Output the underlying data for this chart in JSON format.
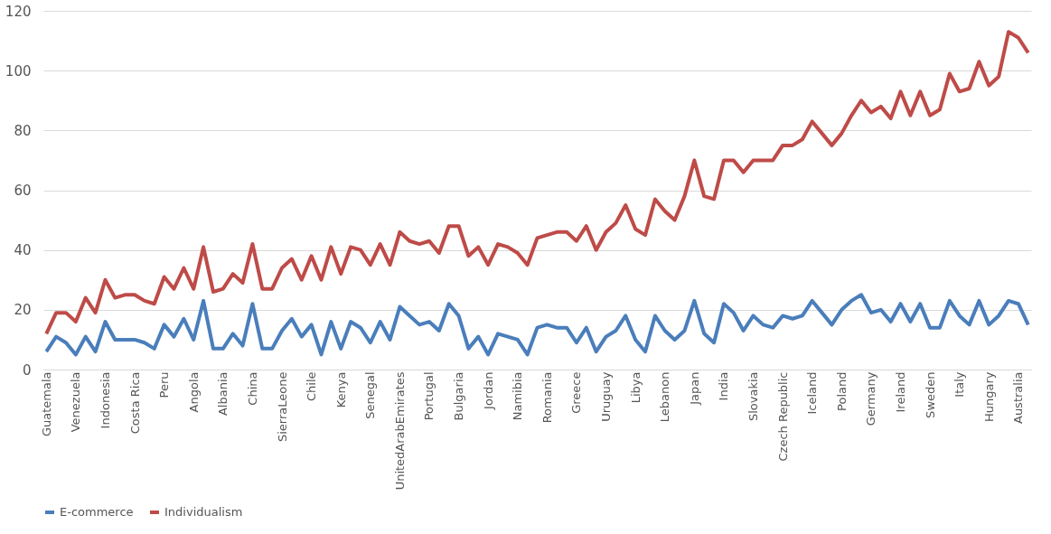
{
  "chart_data": {
    "type": "line",
    "categories": [
      "Guatemala",
      null,
      null,
      "Venezuela",
      null,
      null,
      "Indonesia",
      null,
      null,
      "Costa Rica",
      null,
      null,
      "Peru",
      null,
      null,
      "Angola",
      null,
      null,
      "Albania",
      null,
      null,
      "China",
      null,
      null,
      "SierraLeone",
      null,
      null,
      "Chile",
      null,
      null,
      "Kenya",
      null,
      null,
      "Senegal",
      null,
      null,
      "UnitedArabEmirates",
      null,
      null,
      "Portugal",
      null,
      null,
      "Bulgaria",
      null,
      null,
      "Jordan",
      null,
      null,
      "Namibia",
      null,
      null,
      "Romania",
      null,
      null,
      "Greece",
      null,
      null,
      "Uruguay",
      null,
      null,
      "Libya",
      null,
      null,
      "Lebanon",
      null,
      null,
      "Japan",
      null,
      null,
      "India",
      null,
      null,
      "Slovakia",
      null,
      null,
      "Czech Republic",
      null,
      null,
      "Iceland",
      null,
      null,
      "Poland",
      null,
      null,
      "Germany",
      null,
      null,
      "Ireland",
      null,
      null,
      "Sweden",
      null,
      null,
      "Italy",
      null,
      null,
      "Hungary",
      null,
      null,
      "Australia",
      null
    ],
    "series": [
      {
        "name": "E-commerce",
        "color": "#4a7ebb",
        "values": [
          6,
          11,
          9,
          5,
          11,
          6,
          16,
          10,
          10,
          10,
          9,
          7,
          15,
          11,
          17,
          10,
          23,
          7,
          7,
          12,
          8,
          22,
          7,
          7,
          13,
          17,
          11,
          15,
          5,
          16,
          7,
          16,
          14,
          9,
          16,
          10,
          21,
          18,
          15,
          16,
          13,
          22,
          18,
          7,
          11,
          5,
          12,
          11,
          10,
          5,
          14,
          15,
          14,
          14,
          9,
          14,
          6,
          11,
          13,
          18,
          10,
          6,
          18,
          13,
          10,
          13,
          23,
          12,
          9,
          22,
          19,
          13,
          18,
          15,
          14,
          18,
          17,
          18,
          23,
          19,
          15,
          20,
          23,
          25,
          19,
          20,
          16,
          22,
          16,
          22,
          14,
          14,
          23,
          18,
          15,
          23,
          15,
          18,
          23,
          22,
          15
        ]
      },
      {
        "name": "Individualism",
        "color": "#be4b48",
        "values": [
          12,
          19,
          19,
          16,
          24,
          19,
          30,
          24,
          25,
          25,
          23,
          22,
          31,
          27,
          34,
          27,
          41,
          26,
          27,
          32,
          29,
          42,
          27,
          27,
          34,
          37,
          30,
          38,
          30,
          41,
          32,
          41,
          40,
          35,
          42,
          35,
          46,
          43,
          42,
          43,
          39,
          48,
          48,
          38,
          41,
          35,
          42,
          41,
          39,
          35,
          44,
          45,
          46,
          46,
          43,
          48,
          40,
          46,
          49,
          55,
          47,
          45,
          57,
          53,
          50,
          58,
          70,
          58,
          57,
          70,
          70,
          66,
          70,
          70,
          70,
          75,
          75,
          77,
          83,
          79,
          75,
          79,
          85,
          90,
          86,
          88,
          84,
          93,
          85,
          93,
          85,
          87,
          99,
          93,
          94,
          103,
          95,
          98,
          113,
          111,
          106
        ]
      }
    ],
    "ylim": [
      0,
      120
    ],
    "yticks": [
      0,
      20,
      40,
      60,
      80,
      100,
      120
    ],
    "grid": "y",
    "legend": "bottom",
    "line_style": "solid",
    "marker": "none"
  }
}
